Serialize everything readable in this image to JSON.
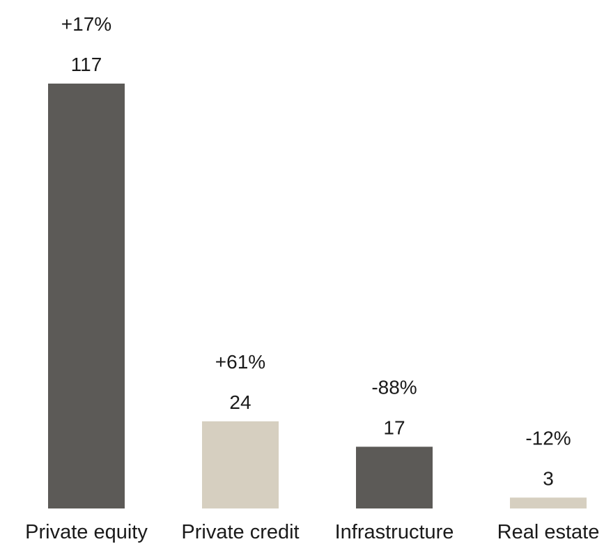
{
  "chart_data": {
    "type": "bar",
    "categories": [
      "Private equity",
      "Private credit",
      "Infrastructure",
      "Real estate"
    ],
    "values": [
      117,
      24,
      17,
      3
    ],
    "changes": [
      "+17%",
      "+61%",
      "-88%",
      "-12%"
    ],
    "value_labels": [
      "117",
      "24",
      "17",
      "3"
    ],
    "colors": [
      "#5c5a57",
      "#d6cfc0",
      "#5c5a57",
      "#d6cfc0"
    ],
    "ylim": [
      0,
      117
    ],
    "grid": false,
    "legend": "none"
  }
}
